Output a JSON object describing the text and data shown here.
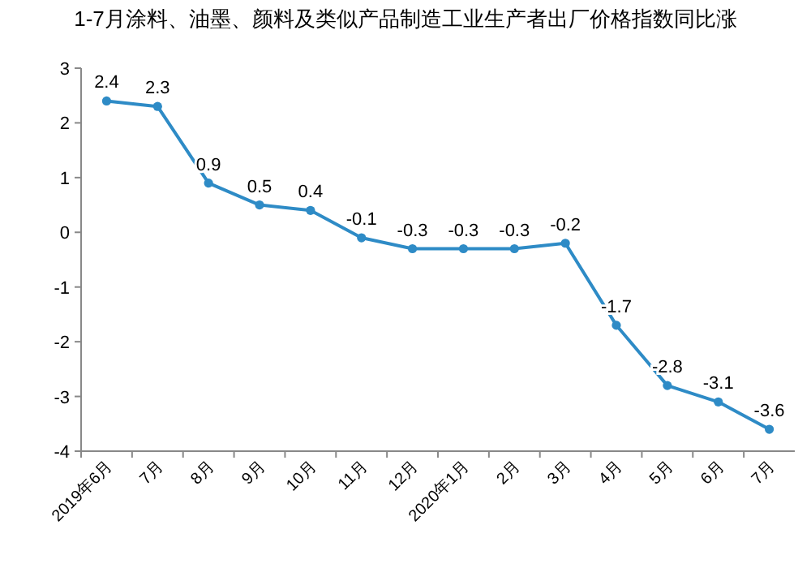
{
  "chart_data": {
    "type": "line",
    "title": "1-7月涂料、油墨、颜料及类似产品制造工业生产者出厂价格指数同比涨",
    "categories": [
      "2019年6月",
      "7月",
      "8月",
      "9月",
      "10月",
      "11月",
      "12月",
      "2020年1月",
      "2月",
      "3月",
      "4月",
      "5月",
      "6月",
      "7月"
    ],
    "series": [
      {
        "color": "#2e8bc6",
        "values": [
          2.4,
          2.3,
          0.9,
          0.5,
          0.4,
          -0.1,
          -0.3,
          -0.3,
          -0.3,
          -0.2,
          -1.7,
          -2.8,
          -3.1,
          -3.6
        ]
      }
    ],
    "ylim": [
      -4,
      3
    ],
    "yticks": [
      -4,
      -3,
      -2,
      -1,
      0,
      1,
      2,
      3
    ],
    "data_labels": true,
    "marker": "circle",
    "line_style": "solid"
  }
}
